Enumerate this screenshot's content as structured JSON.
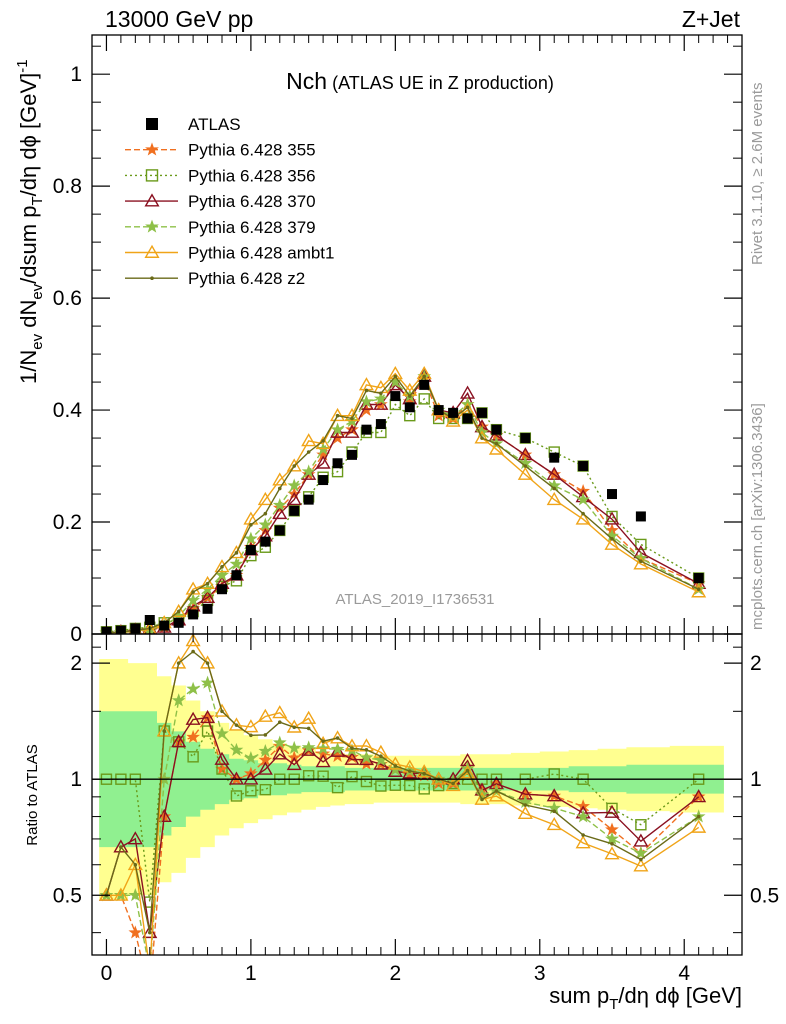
{
  "header": {
    "left": "13000 GeV pp",
    "right": "Z+Jet",
    "title_main": "Nch",
    "title_sub": " (ATLAS UE in Z production)",
    "analysis_id": "ATLAS_2019_I1736531",
    "side_top": "Rivet 3.1.10, ≥ 2.6M events",
    "side_bottom": "mcplots.cern.ch [arXiv:1306.3436]"
  },
  "axes": {
    "xlabel": "sum p_T/dη dϕ [GeV]",
    "ylabel": "1/N_ev dN_ev/dsum p_T/dη dϕ [GeV]^-1",
    "ratio_ylabel": "Ratio to ATLAS"
  },
  "colors": {
    "data": "#000000",
    "p355": "#f07020",
    "p356": "#6a9a1a",
    "p370": "#8a1020",
    "p379": "#8ec048",
    "ambt1": "#f0a418",
    "z2": "#6a6a18",
    "band_inner": "#90f090",
    "band_outer": "#ffff90"
  },
  "chart_data": {
    "type": "line",
    "xlim": [
      -0.1,
      4.4
    ],
    "ylim": [
      0,
      1.07
    ],
    "ratio_ylim": [
      0.35,
      2.38
    ],
    "x_ticks": [
      "0",
      "1",
      "2",
      "3",
      "4"
    ],
    "y_ticks": [
      "0",
      "0.2",
      "0.4",
      "0.6",
      "0.8",
      "1"
    ],
    "ratio_y_ticks": [
      "0.5",
      "1",
      "2"
    ],
    "legend": [
      "ATLAS",
      "Pythia 6.428 355",
      "Pythia 6.428 356",
      "Pythia 6.428 370",
      "Pythia 6.428 379",
      "Pythia 6.428 ambt1",
      "Pythia 6.428 z2"
    ],
    "x": [
      0.0,
      0.1,
      0.2,
      0.3,
      0.4,
      0.5,
      0.6,
      0.7,
      0.8,
      0.9,
      1.0,
      1.1,
      1.2,
      1.3,
      1.4,
      1.5,
      1.6,
      1.7,
      1.8,
      1.9,
      2.0,
      2.1,
      2.2,
      2.3,
      2.4,
      2.5,
      2.6,
      2.7,
      2.9,
      3.1,
      3.3,
      3.5,
      3.7,
      4.1
    ],
    "data": [
      0.004,
      0.006,
      0.01,
      0.025,
      0.015,
      0.02,
      0.035,
      0.045,
      0.08,
      0.105,
      0.15,
      0.165,
      0.185,
      0.22,
      0.24,
      0.275,
      0.305,
      0.32,
      0.365,
      0.375,
      0.425,
      0.405,
      0.445,
      0.4,
      0.395,
      0.385,
      0.395,
      0.365,
      0.35,
      0.315,
      0.3,
      0.25,
      0.21,
      0.1
    ],
    "ratio_band": {
      "inner": [
        1.5,
        1.5,
        1.5,
        1.5,
        1.4,
        1.33,
        1.25,
        1.2,
        1.16,
        1.13,
        1.12,
        1.1,
        1.1,
        1.09,
        1.08,
        1.08,
        1.08,
        1.07,
        1.07,
        1.07,
        1.07,
        1.07,
        1.07,
        1.07,
        1.07,
        1.07,
        1.07,
        1.07,
        1.07,
        1.07,
        1.08,
        1.08,
        1.09,
        1.09
      ],
      "outer": [
        2.05,
        2.05,
        2.0,
        2.0,
        1.85,
        1.75,
        1.6,
        1.5,
        1.4,
        1.34,
        1.3,
        1.27,
        1.24,
        1.22,
        1.2,
        1.18,
        1.17,
        1.16,
        1.16,
        1.15,
        1.15,
        1.15,
        1.15,
        1.15,
        1.15,
        1.16,
        1.16,
        1.16,
        1.17,
        1.18,
        1.19,
        1.2,
        1.21,
        1.22
      ]
    },
    "series": [
      {
        "name": "Pythia 6.428 355",
        "key": "p355",
        "marker": "star",
        "dash": "6,3",
        "values": [
          0.002,
          0.003,
          0.004,
          0.007,
          0.012,
          0.025,
          0.045,
          0.065,
          0.085,
          0.105,
          0.155,
          0.185,
          0.225,
          0.25,
          0.285,
          0.32,
          0.35,
          0.365,
          0.4,
          0.41,
          0.45,
          0.415,
          0.455,
          0.39,
          0.385,
          0.41,
          0.37,
          0.355,
          0.32,
          0.285,
          0.255,
          0.185,
          0.135,
          0.09
        ]
      },
      {
        "name": "Pythia 6.428 356",
        "key": "p356",
        "marker": "square",
        "dash": "2,3",
        "values": [
          0.004,
          0.006,
          0.01,
          0.012,
          0.02,
          0.025,
          0.04,
          0.06,
          0.085,
          0.095,
          0.14,
          0.155,
          0.185,
          0.22,
          0.245,
          0.28,
          0.29,
          0.325,
          0.36,
          0.36,
          0.41,
          0.39,
          0.42,
          0.385,
          0.385,
          0.385,
          0.395,
          0.365,
          0.35,
          0.325,
          0.3,
          0.21,
          0.16,
          0.1
        ]
      },
      {
        "name": "Pythia 6.428 370",
        "key": "p370",
        "marker": "triangle",
        "dash": "",
        "values": [
          0.002,
          0.004,
          0.007,
          0.01,
          0.012,
          0.025,
          0.05,
          0.065,
          0.09,
          0.105,
          0.15,
          0.175,
          0.215,
          0.24,
          0.285,
          0.305,
          0.36,
          0.36,
          0.41,
          0.41,
          0.445,
          0.42,
          0.46,
          0.4,
          0.395,
          0.43,
          0.37,
          0.355,
          0.32,
          0.285,
          0.245,
          0.205,
          0.145,
          0.09
        ]
      },
      {
        "name": "Pythia 6.428 379",
        "key": "p379",
        "marker": "star",
        "dash": "6,3",
        "values": [
          0.002,
          0.003,
          0.005,
          0.008,
          0.015,
          0.032,
          0.06,
          0.08,
          0.105,
          0.125,
          0.17,
          0.195,
          0.23,
          0.265,
          0.29,
          0.33,
          0.365,
          0.38,
          0.415,
          0.42,
          0.45,
          0.425,
          0.46,
          0.4,
          0.39,
          0.41,
          0.36,
          0.34,
          0.305,
          0.265,
          0.24,
          0.175,
          0.135,
          0.08
        ]
      },
      {
        "name": "Pythia 6.428 ambt1",
        "key": "ambt1",
        "marker": "triangle",
        "dash": "",
        "values": [
          0.002,
          0.003,
          0.006,
          0.008,
          0.02,
          0.04,
          0.08,
          0.09,
          0.12,
          0.145,
          0.205,
          0.24,
          0.275,
          0.3,
          0.345,
          0.34,
          0.39,
          0.39,
          0.445,
          0.44,
          0.465,
          0.435,
          0.465,
          0.4,
          0.38,
          0.4,
          0.35,
          0.33,
          0.285,
          0.24,
          0.205,
          0.16,
          0.125,
          0.075
        ]
      },
      {
        "name": "Pythia 6.428 z2",
        "key": "z2",
        "marker": "dot",
        "dash": "",
        "values": [
          0.002,
          0.004,
          0.006,
          0.01,
          0.02,
          0.04,
          0.075,
          0.09,
          0.12,
          0.145,
          0.195,
          0.215,
          0.26,
          0.3,
          0.325,
          0.345,
          0.39,
          0.385,
          0.435,
          0.43,
          0.46,
          0.425,
          0.46,
          0.4,
          0.385,
          0.405,
          0.35,
          0.34,
          0.3,
          0.26,
          0.215,
          0.17,
          0.13,
          0.08
        ]
      }
    ]
  }
}
